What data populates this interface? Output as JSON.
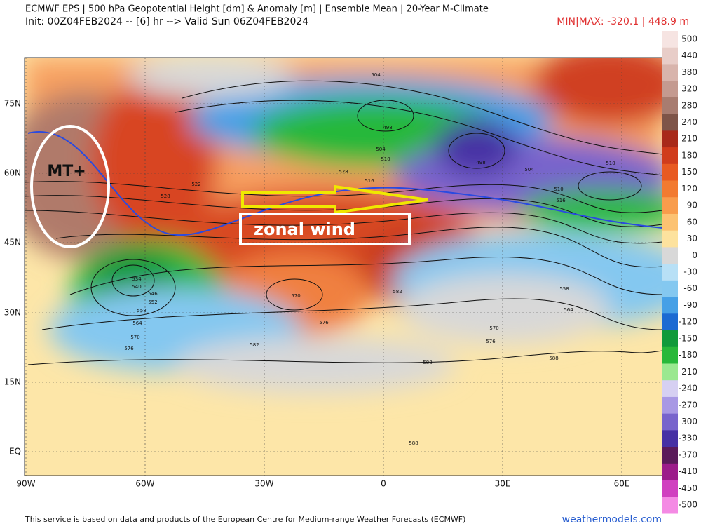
{
  "header": {
    "title": "ECMWF EPS | 500 hPa Geopotential Height [dm] & Anomaly [m] | Ensemble Mean | 20-Year M-Climate",
    "subtitle": "Init: 00Z04FEB2024 -- [6] hr --> Valid Sun 06Z04FEB2024",
    "minmax": "MIN|MAX: -320.1 | 448.9 m"
  },
  "annotations": {
    "ridge_label": "MT+",
    "arrow_label": "zonal wind"
  },
  "lat_labels": [
    "75N",
    "60N",
    "45N",
    "30N",
    "15N",
    "EQ"
  ],
  "lon_labels": [
    "90W",
    "60W",
    "30W",
    "0",
    "30E",
    "60E"
  ],
  "contour_labels": [
    "504",
    "498",
    "504",
    "510",
    "498",
    "504",
    "510",
    "516",
    "510",
    "522",
    "528",
    "534",
    "540",
    "546",
    "552",
    "558",
    "564",
    "570",
    "576",
    "570",
    "576",
    "582",
    "582",
    "588",
    "588",
    "558",
    "564",
    "570",
    "576",
    "516",
    "528",
    "588"
  ],
  "colorbar": {
    "labels": [
      500,
      440,
      380,
      320,
      280,
      240,
      210,
      180,
      150,
      120,
      90,
      60,
      30,
      0,
      -30,
      -60,
      -90,
      -120,
      -150,
      -180,
      -210,
      -240,
      -270,
      -300,
      -330,
      -370,
      -410,
      -450,
      -500
    ],
    "colors": [
      "#f6e4e2",
      "#e8cdc8",
      "#d8b4ac",
      "#c49a90",
      "#a87c70",
      "#7e5448",
      "#a82a1a",
      "#d03c1c",
      "#e85a22",
      "#f27a30",
      "#f89c4c",
      "#fcc272",
      "#fde29e",
      "#d8d8d8",
      "#b8e0f6",
      "#84c8f0",
      "#46a0e6",
      "#1c6ad2",
      "#109a3a",
      "#28b83a",
      "#9ae890",
      "#d6d0f2",
      "#a898e4",
      "#7864cc",
      "#4630a4",
      "#5a1a5a",
      "#9c1c8a",
      "#d040c0",
      "#f48ae4"
    ]
  },
  "footer": {
    "credit": "This service is based on data and products of the European Centre for Medium-range Weather Forecasts (ECMWF)",
    "site": "weathermodels.com"
  }
}
